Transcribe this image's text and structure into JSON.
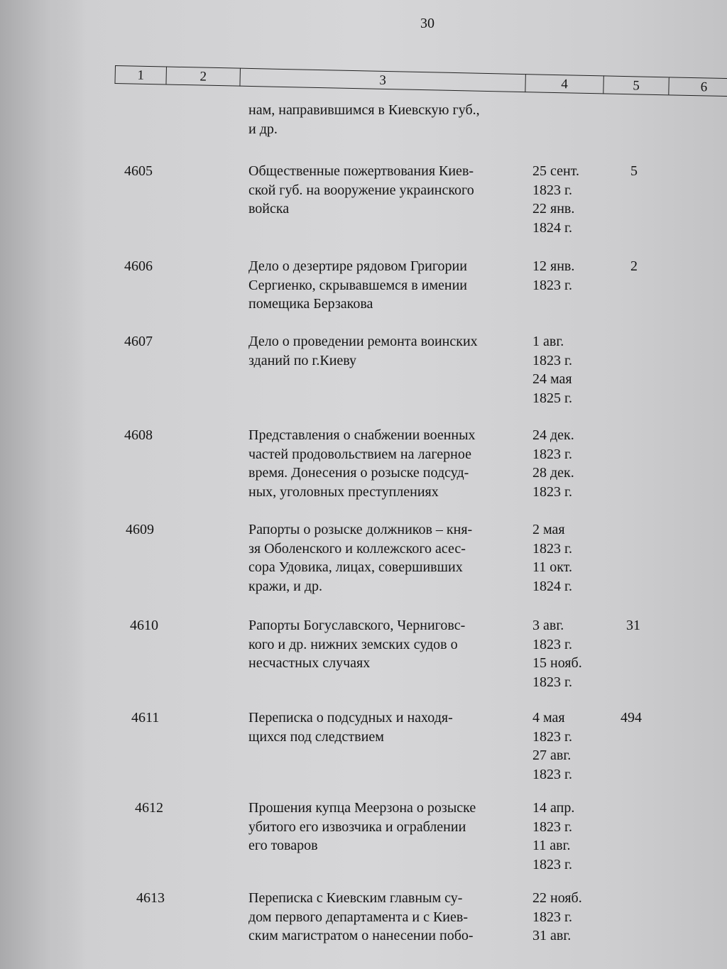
{
  "page_number": "30",
  "header_columns": [
    "1",
    "2",
    "3",
    "4",
    "5",
    "6"
  ],
  "continuation": {
    "description": [
      "нам, направившимся в Киевскую губ.,",
      "и др."
    ]
  },
  "rows": [
    {
      "number": "4605",
      "description": [
        "Общественные пожертвования Киев-",
        "ской губ. на вооружение украинского",
        "войска"
      ],
      "dates": [
        "25 сент.",
        "1823 г.",
        "22 янв.",
        "1824 г."
      ],
      "sheets": "5"
    },
    {
      "number": "4606",
      "description": [
        "Дело о дезертире рядовом Григории",
        "Сергиенко, скрывавшемся в имении",
        "помещика Берзакова"
      ],
      "dates": [
        "12 янв.",
        "1823 г."
      ],
      "sheets": "2"
    },
    {
      "number": "4607",
      "description": [
        "Дело о проведении ремонта воинских",
        "зданий по г.Киеву"
      ],
      "dates": [
        "1 авг.",
        "1823 г.",
        "24 мая",
        "1825 г."
      ],
      "sheets": ""
    },
    {
      "number": "4608",
      "description": [
        "Представления о снабжении военных",
        "частей продовольствием на лагерное",
        "время. Донесения о розыске подсуд-",
        "ных, уголовных преступлениях"
      ],
      "dates": [
        "24 дек.",
        "1823 г.",
        "28 дек.",
        "1823 г."
      ],
      "sheets": ""
    },
    {
      "number": "4609",
      "description": [
        "Рапорты о розыске должников – кня-",
        "зя Оболенского и коллежского асес-",
        "сора Удовика, лицах, совершивших",
        "кражи, и др."
      ],
      "dates": [
        "2 мая",
        "1823 г.",
        "11 окт.",
        "1824 г."
      ],
      "sheets": ""
    },
    {
      "number": "4610",
      "description": [
        "Рапорты Богуславского, Черниговс-",
        "кого и др. нижних земских судов о",
        "несчастных случаях"
      ],
      "dates": [
        "3 авг.",
        "1823 г.",
        "15 нояб.",
        "1823 г."
      ],
      "sheets": "31"
    },
    {
      "number": "4611",
      "description": [
        "Переписка о подсудных и находя-",
        "щихся под следствием"
      ],
      "dates": [
        "4 мая",
        "1823 г.",
        "27 авг.",
        "1823 г."
      ],
      "sheets": "494"
    },
    {
      "number": "4612",
      "description": [
        "Прошения купца Меерзона о розыске",
        "убитого его извозчика и ограблении",
        "его товаров"
      ],
      "dates": [
        "14 апр.",
        "1823 г.",
        "11 авг.",
        "1823 г."
      ],
      "sheets": ""
    },
    {
      "number": "4613",
      "description": [
        "Переписка с Киевским главным су-",
        "дом первого департамента и с Киев-",
        "ским магистратом о нанесении побо-"
      ],
      "dates": [
        "22 нояб.",
        "1823 г.",
        "31 авг."
      ],
      "sheets": ""
    }
  ]
}
